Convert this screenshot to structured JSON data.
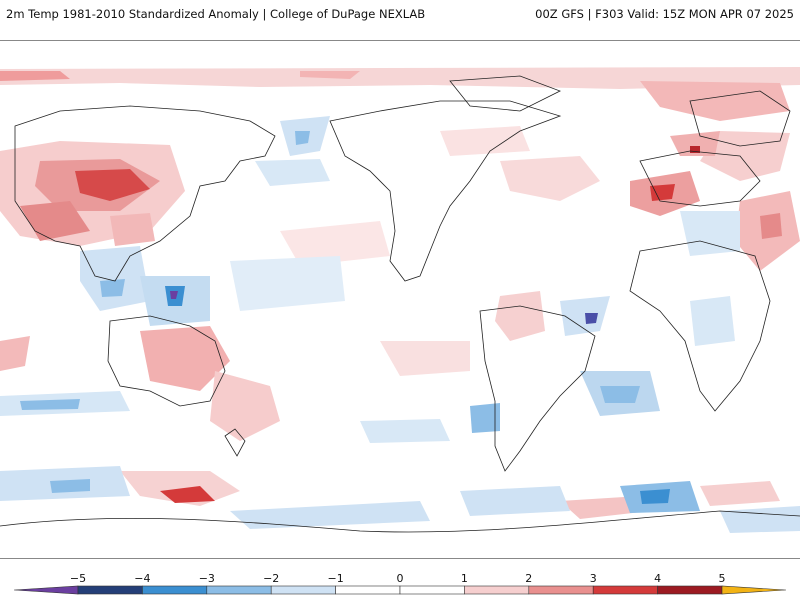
{
  "header": {
    "title": "2m Temp 1981-2010 Standardized Anomaly | College of DuPage NEXLAB",
    "run_info": "00Z GFS | F303 Valid: 15Z MON APR 07 2025"
  },
  "colorbar": {
    "ticks": [
      "−5",
      "−4",
      "−3",
      "−2",
      "−1",
      "0",
      "1",
      "2",
      "3",
      "4",
      "5"
    ],
    "colors": [
      "#6b3fa0",
      "#243f78",
      "#3b8fd1",
      "#8cbde6",
      "#cfe2f4",
      "#ffffff",
      "#ffffff",
      "#f6cfcf",
      "#e9908f",
      "#d43a3a",
      "#9c1a22",
      "#f2b315"
    ]
  }
}
